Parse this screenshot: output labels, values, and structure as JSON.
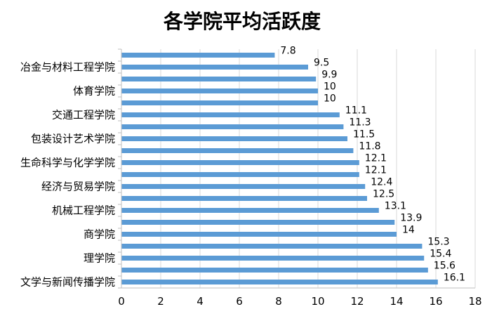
{
  "chart_data": {
    "type": "bar",
    "orientation": "horizontal",
    "title": "各学院平均活跃度",
    "categories": [
      "文学与新闻传播学院",
      "",
      "理学院",
      "",
      "商学院",
      "",
      "机械工程学院",
      "",
      "经济与贸易学院",
      "",
      "生命科学与化学学院",
      "",
      "包装设计艺术学院",
      "",
      "交通工程学院",
      "",
      "体育学院",
      "",
      "冶金与材料工程学院",
      ""
    ],
    "values": [
      16.1,
      15.6,
      15.4,
      15.3,
      14,
      13.9,
      13.1,
      12.5,
      12.4,
      12.1,
      12.1,
      11.8,
      11.5,
      11.3,
      11.1,
      10,
      10,
      9.9,
      9.5,
      7.8
    ],
    "data_labels": [
      "16.1",
      "15.6",
      "15.4",
      "15.3",
      "14",
      "13.9",
      "13.1",
      "12.5",
      "12.4",
      "12.1",
      "12.1",
      "11.8",
      "11.5",
      "11.3",
      "11.1",
      "10",
      "10",
      "9.9",
      "9.5",
      "7.8"
    ],
    "xlim": [
      0,
      18
    ],
    "xticks": [
      "0",
      "2",
      "4",
      "6",
      "8",
      "10",
      "12",
      "14",
      "16",
      "18"
    ],
    "grid": "vertical",
    "legend": "none",
    "bar_color": "#5B9BD5",
    "grid_color": "#D9D9D9",
    "axis_color": "#BFBFBF"
  }
}
